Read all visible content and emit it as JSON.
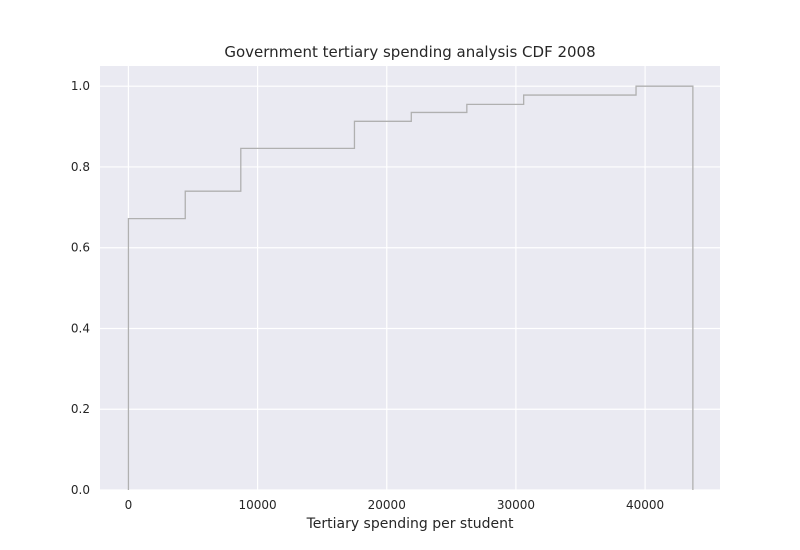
{
  "chart_data": {
    "type": "step",
    "title": "Government tertiary spending analysis CDF 2008",
    "xlabel": "Tertiary spending per student",
    "ylabel": "",
    "xlim": [
      -2200,
      45800
    ],
    "ylim": [
      0,
      1.05
    ],
    "grid": true,
    "x_ticks": [
      0,
      10000,
      20000,
      30000,
      40000
    ],
    "x_tick_labels": [
      "0",
      "10000",
      "20000",
      "30000",
      "40000"
    ],
    "y_ticks": [
      0.0,
      0.2,
      0.4,
      0.6,
      0.8,
      1.0
    ],
    "y_tick_labels": [
      "0.0",
      "0.2",
      "0.4",
      "0.6",
      "0.8",
      "1.0"
    ],
    "series": [
      {
        "name": "CDF",
        "color": "#b0b0b0",
        "steps": [
          {
            "x": 0,
            "y": 0.672
          },
          {
            "x": 4400,
            "y": 0.74
          },
          {
            "x": 8700,
            "y": 0.846
          },
          {
            "x": 17500,
            "y": 0.913
          },
          {
            "x": 21900,
            "y": 0.935
          },
          {
            "x": 26200,
            "y": 0.955
          },
          {
            "x": 30600,
            "y": 0.978
          },
          {
            "x": 39300,
            "y": 1.0
          }
        ],
        "x_end": 43700
      }
    ]
  },
  "colors": {
    "plot_background": "#eaeaf2",
    "grid": "#ffffff",
    "text": "#262626"
  }
}
